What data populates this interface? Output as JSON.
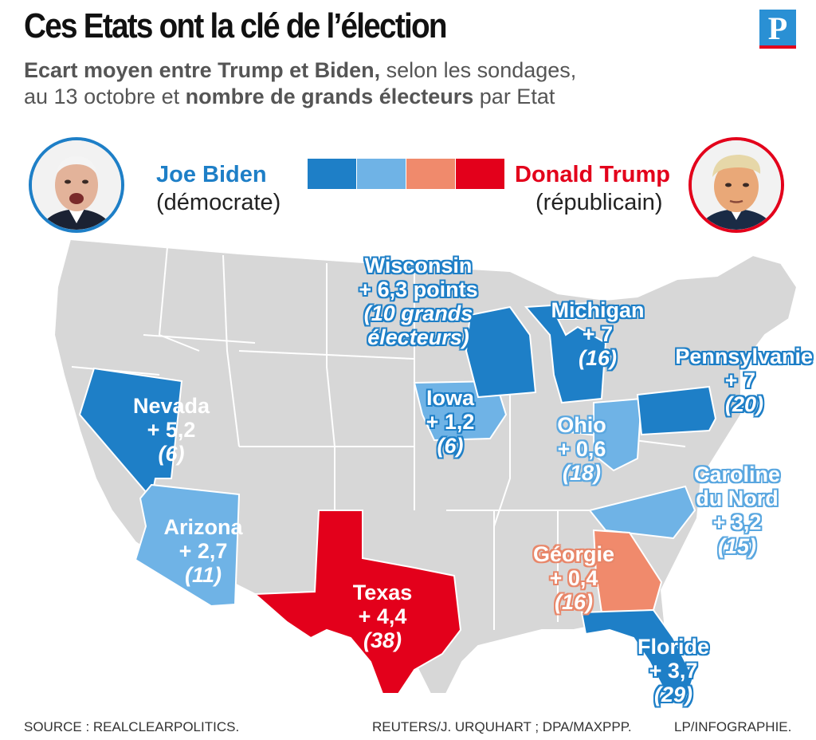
{
  "header": {
    "title": "Ces Etats ont la clé de l’élection",
    "subtitle_bold_1": "Ecart moyen entre Trump et Biden,",
    "subtitle_text_1": " selon les sondages,",
    "subtitle_text_2": "au 13 octobre et ",
    "subtitle_bold_2": "nombre de grands électeurs",
    "subtitle_text_3": " par Etat",
    "logo_letter": "P"
  },
  "legend": {
    "biden": {
      "name": "Joe Biden",
      "party": "(démocrate)",
      "color": "#1e7fc7"
    },
    "trump": {
      "name": "Donald Trump",
      "party": "(républicain)",
      "color": "#e3001b"
    },
    "scale_colors": [
      "#1e7fc7",
      "#6fb3e6",
      "#f08a6c",
      "#e3001b"
    ]
  },
  "map": {
    "base_color": "#d7d7d7",
    "states": [
      {
        "id": "wisconsin",
        "name": "Wisconsin",
        "margin": "+ 6,3 points",
        "electors": "(10 grands",
        "electors2": "électeurs)",
        "color": "#1e7fc7"
      },
      {
        "id": "michigan",
        "name": "Michigan",
        "margin": "+ 7",
        "electors": "(16)",
        "color": "#1e7fc7"
      },
      {
        "id": "pennsylvanie",
        "name": "Pennsylvanie",
        "margin": "+ 7",
        "electors": "(20)",
        "color": "#1e7fc7"
      },
      {
        "id": "nevada",
        "name": "Nevada",
        "margin": "+ 5,2",
        "electors": "(6)",
        "color": "#1e7fc7"
      },
      {
        "id": "iowa",
        "name": "Iowa",
        "margin": "+ 1,2",
        "electors": "(6)",
        "color": "#6fb3e6"
      },
      {
        "id": "ohio",
        "name": "Ohio",
        "margin": "+ 0,6",
        "electors": "(18)",
        "color": "#6fb3e6"
      },
      {
        "id": "caroline",
        "name": "Caroline",
        "name2": "du Nord",
        "margin": "+ 3,2",
        "electors": "(15)",
        "color": "#6fb3e6"
      },
      {
        "id": "arizona",
        "name": "Arizona",
        "margin": "+ 2,7",
        "electors": "(11)",
        "color": "#6fb3e6"
      },
      {
        "id": "georgie",
        "name": "Géorgie",
        "margin": "+ 0,4",
        "electors": "(16)",
        "color": "#f08a6c"
      },
      {
        "id": "texas",
        "name": "Texas",
        "margin": "+ 4,4",
        "electors": "(38)",
        "color": "#e3001b"
      },
      {
        "id": "floride",
        "name": "Floride",
        "margin": "+ 3,7",
        "electors": "(29)",
        "color": "#1e7fc7"
      }
    ]
  },
  "footer": {
    "source": "SOURCE : REALCLEARPOLITICS.",
    "credits": "REUTERS/J. URQUHART ; DPA/MAXPPP.",
    "infographie": "LP/INFOGRAPHIE."
  }
}
